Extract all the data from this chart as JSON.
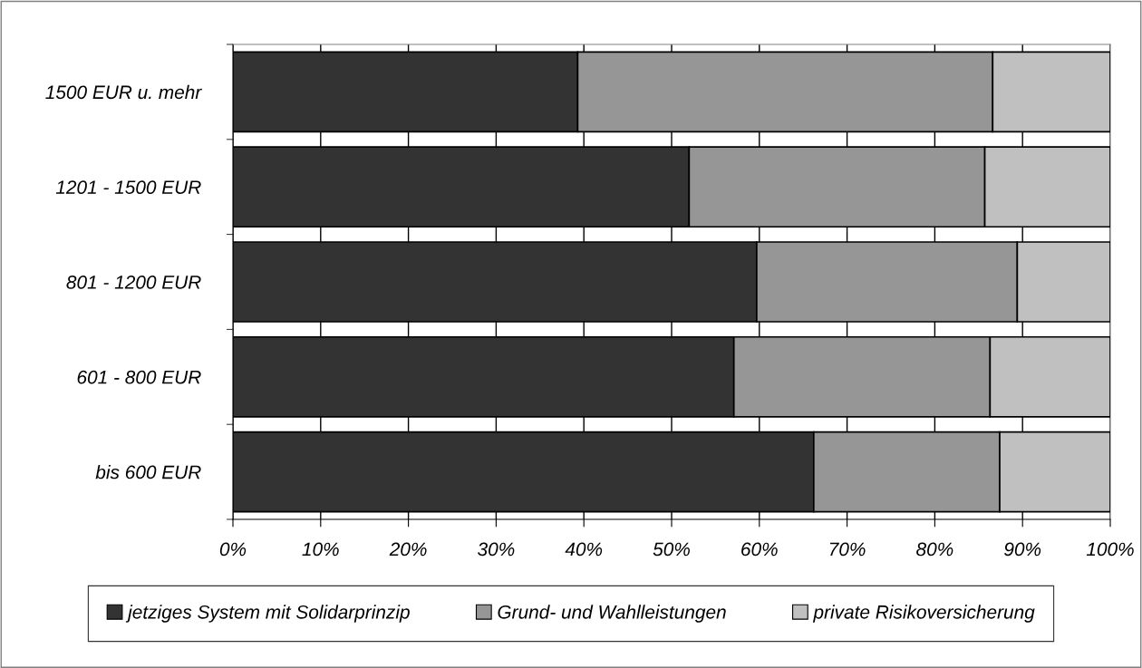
{
  "chart_data": {
    "type": "bar",
    "orientation": "horizontal",
    "stacked": true,
    "categories": [
      "1500 EUR u. mehr",
      "1201 - 1500 EUR",
      "801 - 1200 EUR",
      "601 - 800 EUR",
      "bis 600 EUR"
    ],
    "series": [
      {
        "name": "jetziges System mit Solidarprinzip",
        "color": "#333333",
        "values": [
          39.3,
          52.0,
          59.7,
          57.1,
          66.2
        ]
      },
      {
        "name": "Grund- und Wahlleistungen",
        "color": "#969696",
        "values": [
          47.3,
          33.7,
          29.7,
          29.2,
          21.2
        ]
      },
      {
        "name": "private Risikoversicherung",
        "color": "#c0c0c0",
        "values": [
          13.4,
          14.3,
          10.6,
          13.7,
          12.6
        ]
      }
    ],
    "xlim": [
      0,
      100
    ],
    "xticks": [
      {
        "value": 0,
        "label": "0%"
      },
      {
        "value": 10,
        "label": "10%"
      },
      {
        "value": 20,
        "label": "20%"
      },
      {
        "value": 30,
        "label": "30%"
      },
      {
        "value": 40,
        "label": "40%"
      },
      {
        "value": 50,
        "label": "50%"
      },
      {
        "value": 60,
        "label": "60%"
      },
      {
        "value": 70,
        "label": "70%"
      },
      {
        "value": 80,
        "label": "80%"
      },
      {
        "value": 90,
        "label": "90%"
      },
      {
        "value": 100,
        "label": "100%"
      }
    ],
    "grid": "x",
    "legend": "bottom"
  }
}
